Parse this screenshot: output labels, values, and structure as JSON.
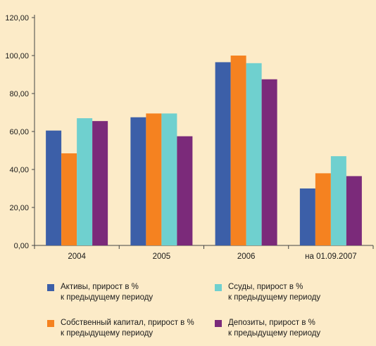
{
  "chart_data": {
    "type": "bar",
    "categories": [
      "2004",
      "2005",
      "2006",
      "на 01.09.2007"
    ],
    "series": [
      {
        "name": "Активы, прирост в % к предыдущему периоду",
        "color": "#3c5fa8",
        "values": [
          60.5,
          67.5,
          96.5,
          30
        ]
      },
      {
        "name": "Собственный капитал, прирост в % к предыдущему периоду",
        "color": "#f58220",
        "values": [
          48.5,
          69.5,
          100,
          38
        ]
      },
      {
        "name": "Ссуды, прирост в % к предыдущему периоду",
        "color": "#6fd0cf",
        "values": [
          67,
          69.5,
          96,
          47
        ]
      },
      {
        "name": "Депозиты, прирост в % к предыдущему периоду",
        "color": "#7b2a7a",
        "values": [
          65.5,
          57.5,
          87.5,
          36.5
        ]
      }
    ],
    "yticks": [
      "0,00",
      "20,00",
      "40,00",
      "60,00",
      "80,00",
      "100,00",
      "120,00"
    ],
    "ylim": [
      0,
      120
    ],
    "grid": false,
    "legend_position": "bottom"
  },
  "legend": [
    {
      "line1": "Активы, прирост в %",
      "line2": "к предыдущему периоду"
    },
    {
      "line1": "Ссуды, прирост в %",
      "line2": "к предыдущему периоду"
    },
    {
      "line1": "Собственный капитал, прирост в %",
      "line2": "к предыдущему периоду"
    },
    {
      "line1": "Депозиты, прирост в %",
      "line2": "к предыдущему периоду"
    }
  ]
}
